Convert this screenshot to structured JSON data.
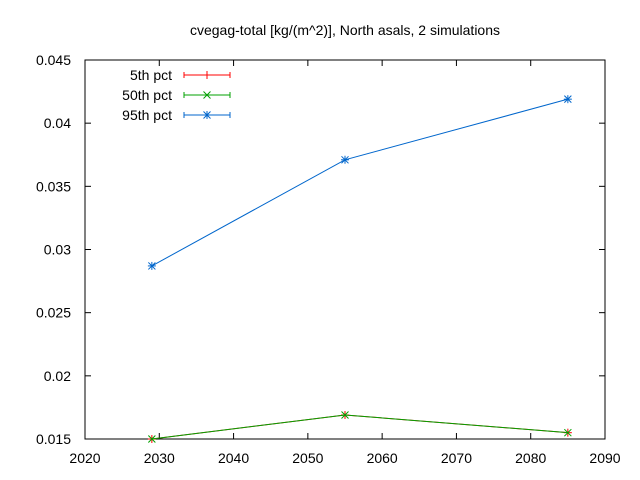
{
  "chart_data": {
    "type": "line",
    "title": "cvegag-total [kg/(m^2)], North asals, 2 simulations",
    "xlabel": "",
    "ylabel": "",
    "xlim": [
      2020,
      2090
    ],
    "ylim": [
      0.015,
      0.045
    ],
    "xticks": [
      2020,
      2030,
      2040,
      2050,
      2060,
      2070,
      2080,
      2090
    ],
    "yticks": [
      0.015,
      0.02,
      0.025,
      0.03,
      0.035,
      0.04,
      0.045
    ],
    "ytick_labels": [
      "0.015",
      "0.02",
      "0.025",
      "0.03",
      "0.035",
      "0.04",
      "0.045"
    ],
    "grid": false,
    "legend_position": "top-left",
    "x": [
      2029,
      2055,
      2085
    ],
    "series": [
      {
        "name": "5th pct",
        "color": "#ff0000",
        "marker": "plus",
        "values": [
          0.015,
          0.0169,
          0.0155
        ]
      },
      {
        "name": "50th pct",
        "color": "#00a000",
        "marker": "x",
        "values": [
          0.015,
          0.0169,
          0.0155
        ]
      },
      {
        "name": "95th pct",
        "color": "#0066cc",
        "marker": "star",
        "values": [
          0.0287,
          0.0371,
          0.0419
        ]
      }
    ]
  }
}
